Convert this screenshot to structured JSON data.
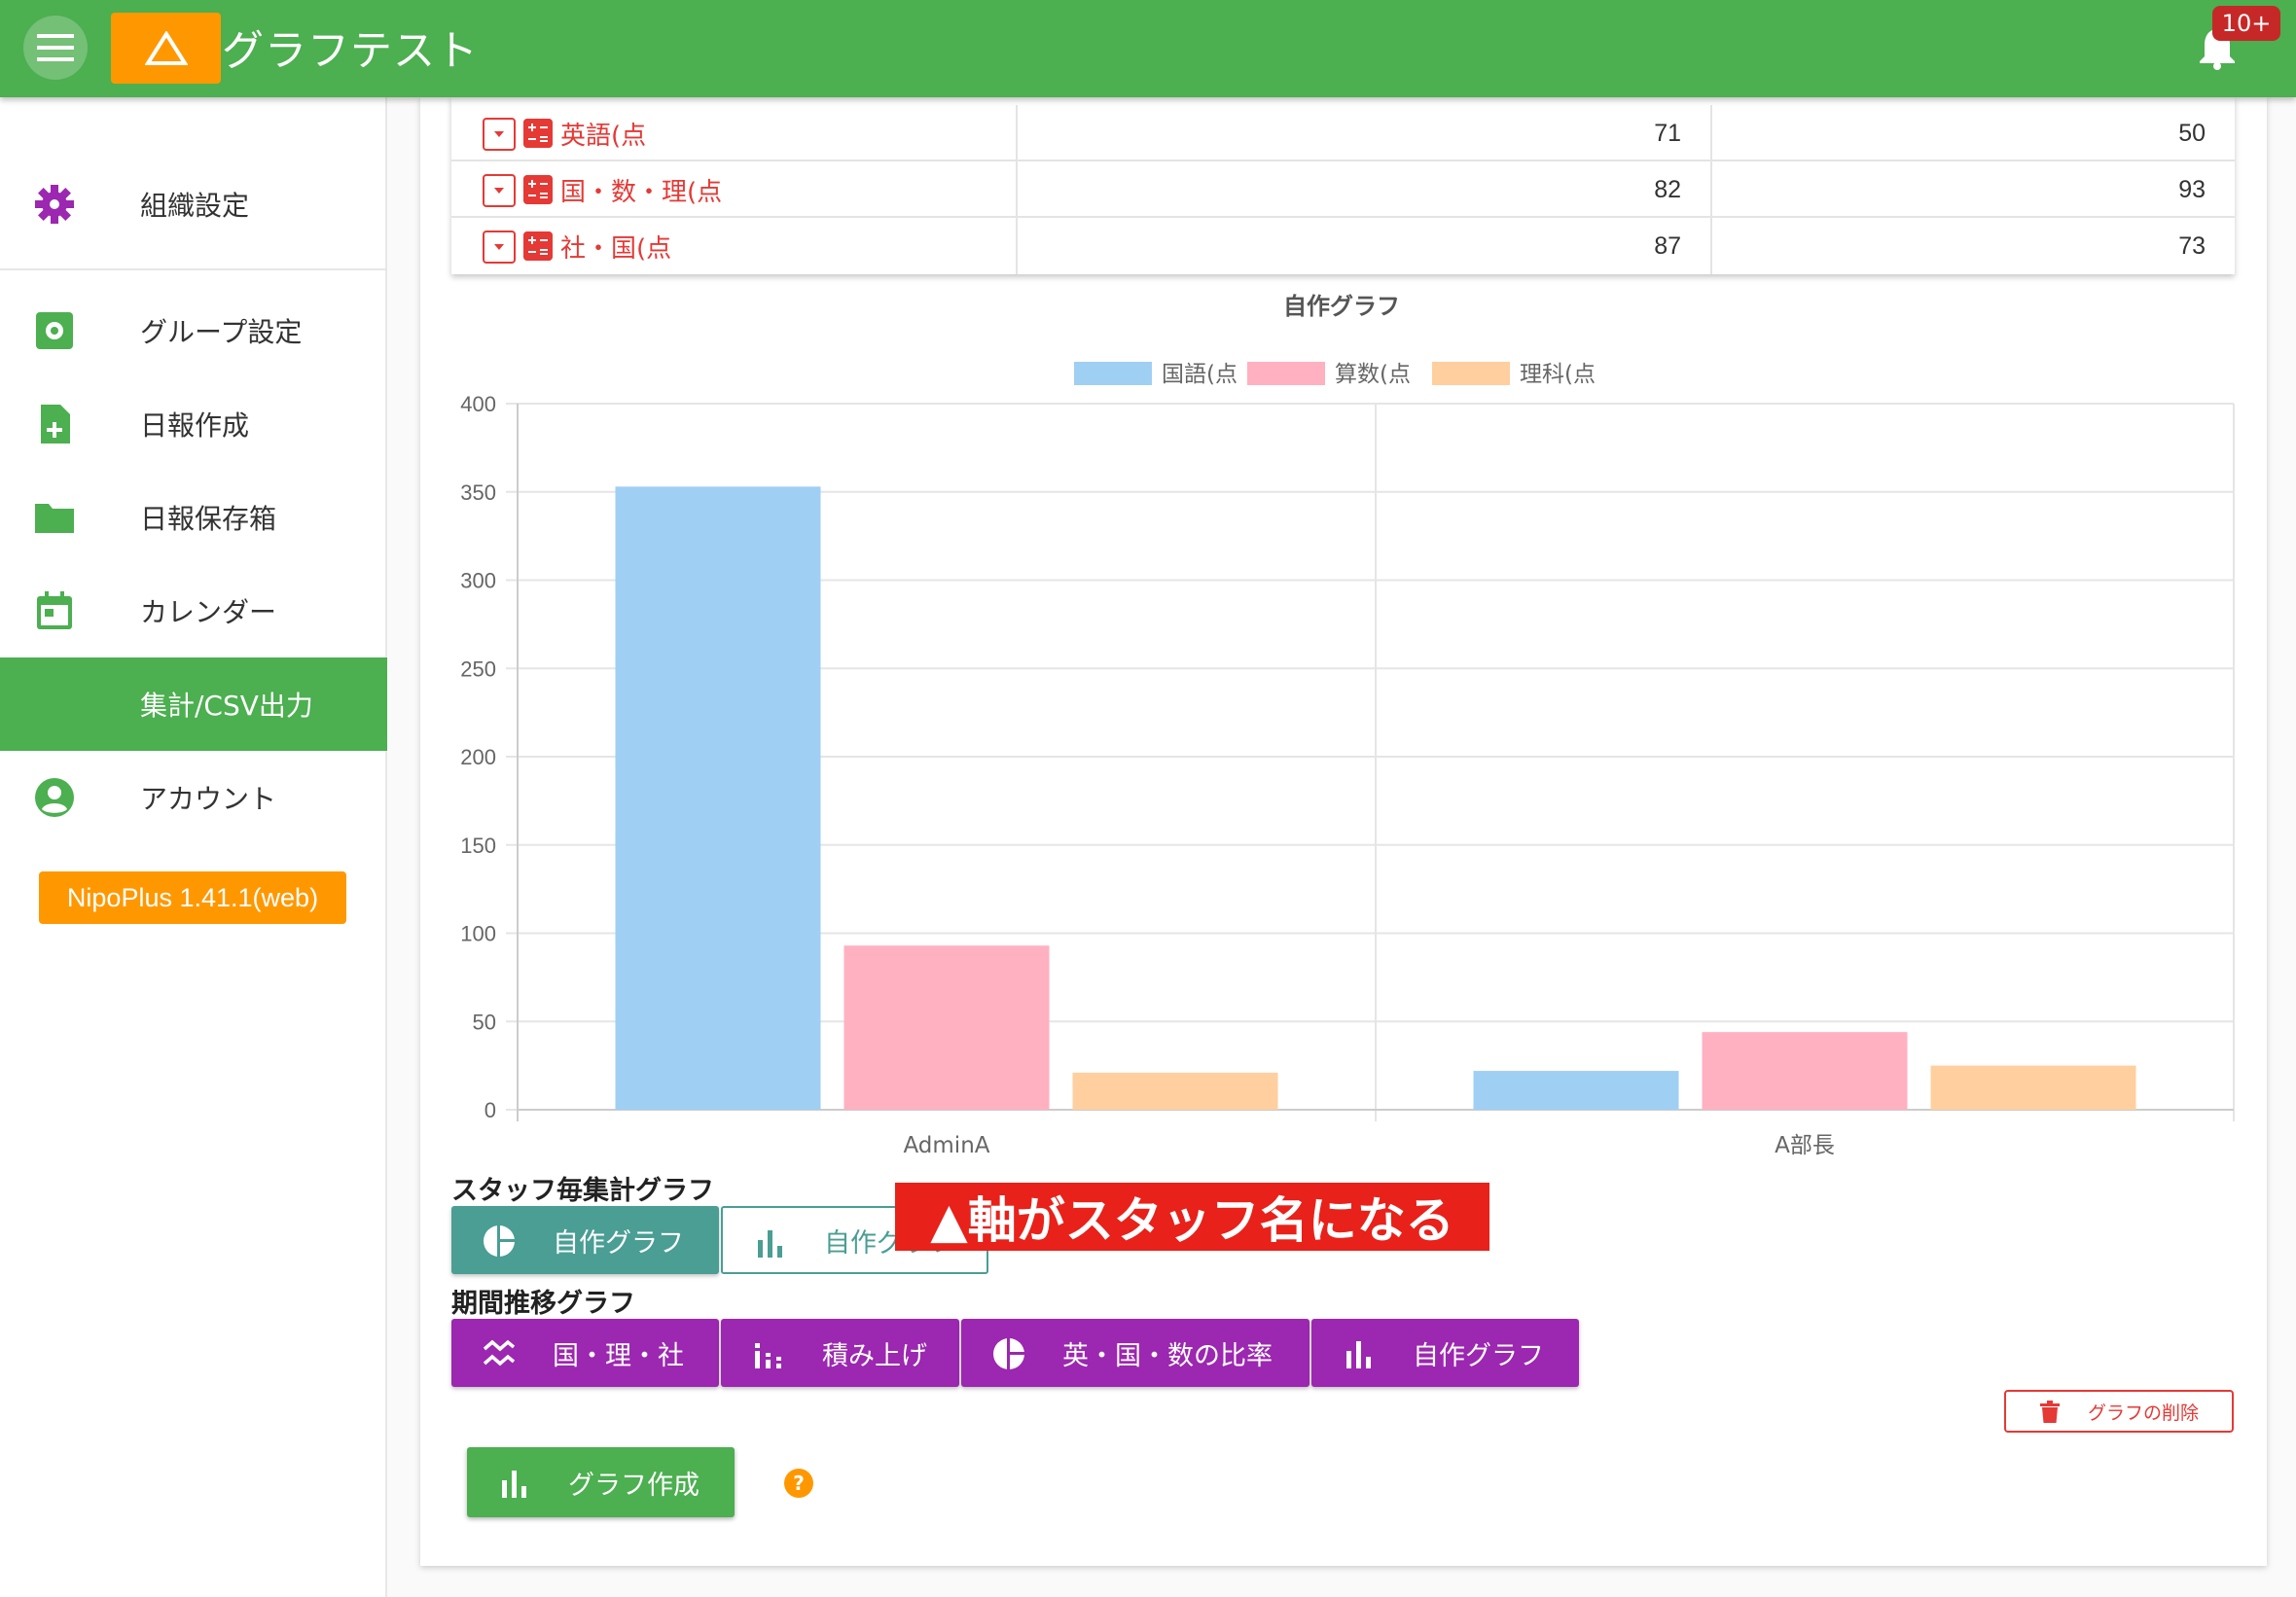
{
  "header": {
    "title": "グラフテスト",
    "notification_count": "10+",
    "icons": {
      "menu": "hamburger-icon",
      "logo": "triangle-logo",
      "bell": "bell-icon"
    }
  },
  "sidebar": {
    "items": [
      {
        "label": "組織設定",
        "icon": "gear-icon",
        "color": "#9c27b0"
      },
      {
        "label": "グループ設定",
        "icon": "gear-box-icon",
        "color": "#4caf50"
      },
      {
        "label": "日報作成",
        "icon": "file-plus-icon",
        "color": "#4caf50"
      },
      {
        "label": "日報保存箱",
        "icon": "folder-icon",
        "color": "#4caf50"
      },
      {
        "label": "カレンダー",
        "icon": "calendar-icon",
        "color": "#4caf50"
      },
      {
        "label": "集計/CSV出力",
        "icon": "",
        "active": true
      },
      {
        "label": "アカウント",
        "icon": "account-icon",
        "color": "#4caf50"
      }
    ],
    "version": "NipoPlus 1.41.1(web)"
  },
  "table": {
    "rows": [
      {
        "label": "英語(点",
        "v1": "71",
        "v2": "50"
      },
      {
        "label": "国・数・理(点",
        "v1": "82",
        "v2": "93"
      },
      {
        "label": "社・国(点",
        "v1": "87",
        "v2": "73"
      }
    ]
  },
  "chart_data": {
    "type": "bar",
    "title": "自作グラフ",
    "categories": [
      "AdminA",
      "A部長"
    ],
    "series": [
      {
        "name": "国語(点",
        "values": [
          353,
          22
        ],
        "color": "#a0cff4"
      },
      {
        "name": "算数(点",
        "values": [
          93,
          44
        ],
        "color": "#ffb1c1"
      },
      {
        "name": "理科(点",
        "values": [
          21,
          25
        ],
        "color": "#ffcf9f"
      }
    ],
    "ylim": [
      0,
      400
    ],
    "yticks": [
      0,
      50,
      100,
      150,
      200,
      250,
      300,
      350,
      400
    ],
    "legend": "top",
    "grid": true
  },
  "staff_section": {
    "label": "スタッフ毎集計グラフ",
    "buttons": [
      {
        "label": "自作グラフ",
        "icon": "pie-chart-icon"
      },
      {
        "label": "自作グラフ",
        "icon": "bar-chart-icon"
      }
    ]
  },
  "annotation": "▲軸がスタッフ名になる",
  "period_section": {
    "label": "期間推移グラフ",
    "buttons": [
      {
        "label": "国・理・社",
        "icon": "line-chart-icon"
      },
      {
        "label": "積み上げ",
        "icon": "stacked-bar-icon"
      },
      {
        "label": "英・国・数の比率",
        "icon": "pie-chart-icon"
      },
      {
        "label": "自作グラフ",
        "icon": "bar-chart-icon"
      }
    ]
  },
  "delete_button": "グラフの削除",
  "create_button": "グラフ作成",
  "help": "?"
}
